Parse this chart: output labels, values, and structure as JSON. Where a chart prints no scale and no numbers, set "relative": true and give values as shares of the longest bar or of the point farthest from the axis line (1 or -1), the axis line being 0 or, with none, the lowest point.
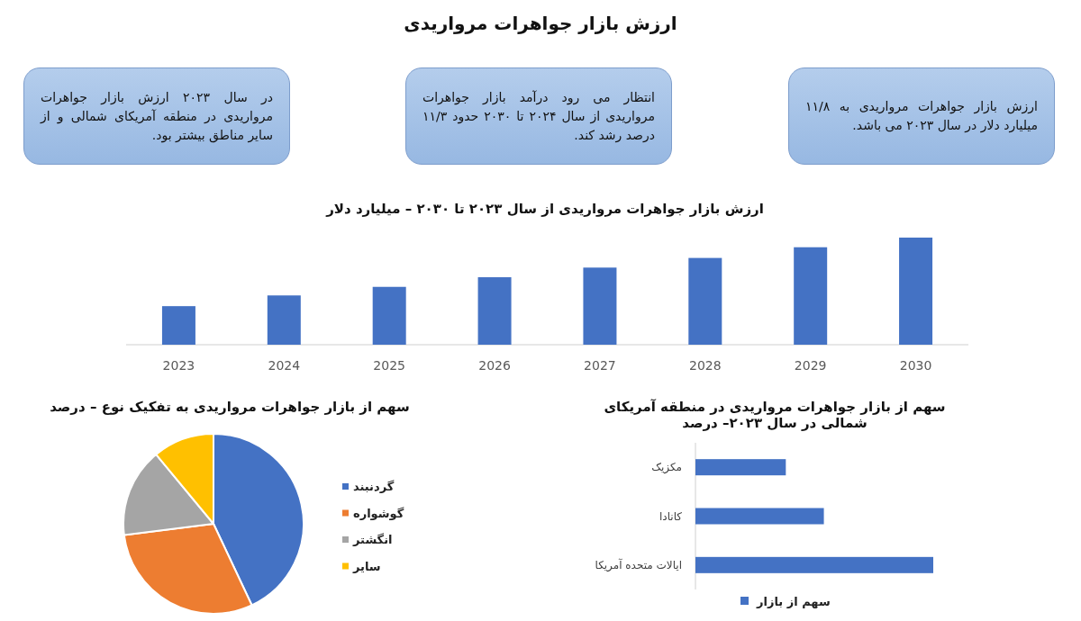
{
  "chart_data": [
    {
      "type": "other",
      "title": "ارزش بازار جواهرات مرواریدی",
      "annotations": [
        "ارزش بازار جواهرات مرواریدی به ۱۱/۸ میلیارد دلار در سال ۲۰۲۳ می باشد.",
        "انتظار می رود درآمد بازار جواهرات مرواریدی از سال ۲۰۲۴ تا ۲۰۳۰ حدود ۱۱/۳ درصد رشد کند.",
        "در سال ۲۰۲۳ ارزش بازار جواهرات مرواریدی در منطقه آمریکای شمالی و از سایر مناطق بیشتر بود."
      ]
    },
    {
      "type": "bar",
      "title": "ارزش بازار جواهرات مرواریدی از سال ۲۰۲۳ تا ۲۰۳۰ – میلیارد دلار",
      "categories": [
        "2023",
        "2024",
        "2025",
        "2026",
        "2027",
        "2028",
        "2029",
        "2030"
      ],
      "values": [
        0.36,
        0.46,
        0.54,
        0.63,
        0.72,
        0.81,
        0.91,
        1
      ],
      "color": "#4472c4",
      "relative": true
    },
    {
      "type": "bar",
      "orientation": "horizontal",
      "title": "سهم از بازار جواهرات مرواریدی در منطقه آمریکای شمالی در سال ۲۰۲۳– درصد",
      "categories": [
        "مکزیک",
        "کانادا",
        "ایالات متحده آمریکا"
      ],
      "series": [
        {
          "name": "سهم از بازار",
          "color": "#4472c4",
          "values": [
            0.38,
            0.54,
            1
          ]
        }
      ],
      "relative": true,
      "legend": "bottom"
    },
    {
      "type": "pie",
      "title": "سهم از بازار جواهرات مرواریدی به تفکیک نوع – درصد",
      "categories": [
        "گردنبند",
        "گوشواره",
        "انگشتر",
        "سایر"
      ],
      "values": [
        43,
        30,
        16,
        11
      ],
      "colors": [
        "#4472c4",
        "#ed7d31",
        "#a5a5a5",
        "#ffc000"
      ],
      "legend": "right"
    }
  ]
}
